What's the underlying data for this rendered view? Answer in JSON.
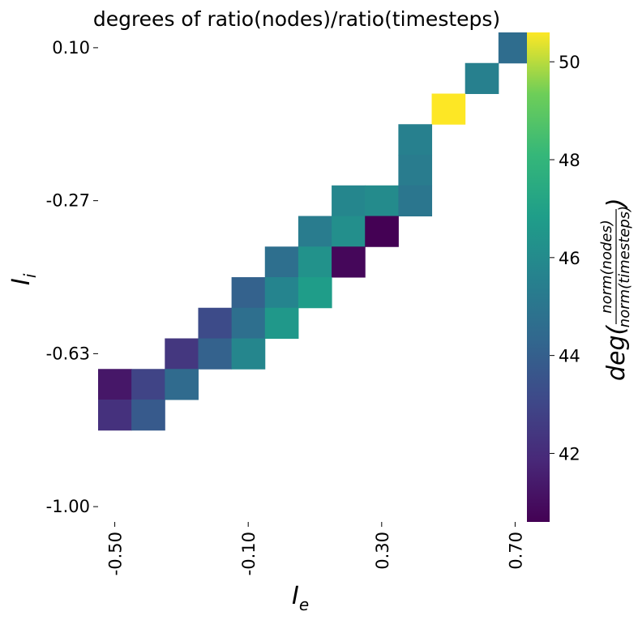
{
  "chart_data": {
    "type": "heatmap",
    "title": "degrees of ratio(nodes)/ratio(timesteps)",
    "xlabel": {
      "main": "I",
      "sub": "e"
    },
    "ylabel": {
      "main": "I",
      "sub": "i"
    },
    "x_tick_labels": [
      "-0.50",
      "-0.10",
      "0.30",
      "0.70"
    ],
    "x_tick_cols": [
      0.5,
      4.5,
      8.5,
      12.5
    ],
    "y_tick_labels": [
      "0.10",
      "-0.27",
      "-0.63",
      "-1.00"
    ],
    "y_tick_rows": [
      0.5,
      5.5,
      10.5,
      15.5
    ],
    "n_cols": 13,
    "n_rows": 16,
    "cells": [
      {
        "row": 0,
        "col": 12,
        "value": 44.6
      },
      {
        "row": 1,
        "col": 11,
        "value": 45.5
      },
      {
        "row": 2,
        "col": 10,
        "value": 50.6
      },
      {
        "row": 3,
        "col": 9,
        "value": 45.5
      },
      {
        "row": 4,
        "col": 9,
        "value": 45.3
      },
      {
        "row": 5,
        "col": 7,
        "value": 45.8
      },
      {
        "row": 5,
        "col": 8,
        "value": 46.0
      },
      {
        "row": 5,
        "col": 9,
        "value": 45.0
      },
      {
        "row": 6,
        "col": 6,
        "value": 45.3
      },
      {
        "row": 6,
        "col": 7,
        "value": 46.2
      },
      {
        "row": 6,
        "col": 8,
        "value": 40.6
      },
      {
        "row": 7,
        "col": 5,
        "value": 44.7
      },
      {
        "row": 7,
        "col": 6,
        "value": 46.3
      },
      {
        "row": 7,
        "col": 7,
        "value": 40.8
      },
      {
        "row": 8,
        "col": 4,
        "value": 44.1
      },
      {
        "row": 8,
        "col": 5,
        "value": 45.7
      },
      {
        "row": 8,
        "col": 6,
        "value": 46.8
      },
      {
        "row": 9,
        "col": 3,
        "value": 43.2
      },
      {
        "row": 9,
        "col": 4,
        "value": 44.7
      },
      {
        "row": 9,
        "col": 5,
        "value": 46.6
      },
      {
        "row": 10,
        "col": 2,
        "value": 42.4
      },
      {
        "row": 10,
        "col": 3,
        "value": 44.1
      },
      {
        "row": 10,
        "col": 4,
        "value": 45.8
      },
      {
        "row": 11,
        "col": 0,
        "value": 41.3
      },
      {
        "row": 11,
        "col": 1,
        "value": 42.9
      },
      {
        "row": 11,
        "col": 2,
        "value": 44.5
      },
      {
        "row": 12,
        "col": 0,
        "value": 42.2
      },
      {
        "row": 12,
        "col": 1,
        "value": 43.8
      }
    ],
    "colorbar": {
      "colormap": "viridis",
      "vmin": 40.6,
      "vmax": 50.6,
      "ticks": [
        42,
        44,
        46,
        48,
        50
      ],
      "label": {
        "prefix": "deg(",
        "numerator": "norm(nodes)",
        "denominator": "norm(timesteps)",
        "suffix": ")"
      }
    }
  }
}
